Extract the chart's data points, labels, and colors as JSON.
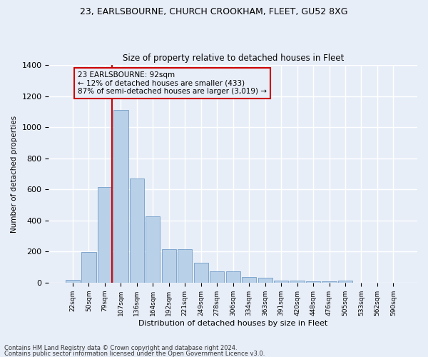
{
  "title1": "23, EARLSBOURNE, CHURCH CROOKHAM, FLEET, GU52 8XG",
  "title2": "Size of property relative to detached houses in Fleet",
  "xlabel": "Distribution of detached houses by size in Fleet",
  "ylabel": "Number of detached properties",
  "categories": [
    "22sqm",
    "50sqm",
    "79sqm",
    "107sqm",
    "136sqm",
    "164sqm",
    "192sqm",
    "221sqm",
    "249sqm",
    "278sqm",
    "306sqm",
    "334sqm",
    "363sqm",
    "391sqm",
    "420sqm",
    "448sqm",
    "476sqm",
    "505sqm",
    "533sqm",
    "562sqm",
    "590sqm"
  ],
  "values": [
    18,
    195,
    615,
    1110,
    670,
    425,
    215,
    215,
    130,
    72,
    72,
    35,
    30,
    15,
    15,
    10,
    10,
    12,
    0,
    0,
    0
  ],
  "bar_color": "#b8d0e8",
  "bar_edge_color": "#6090c0",
  "vline_color": "#cc0000",
  "annotation_text": "23 EARLSBOURNE: 92sqm\n← 12% of detached houses are smaller (433)\n87% of semi-detached houses are larger (3,019) →",
  "annotation_box_color": "#cc0000",
  "background_color": "#e8eef8",
  "grid_color": "#ffffff",
  "footer1": "Contains HM Land Registry data © Crown copyright and database right 2024.",
  "footer2": "Contains public sector information licensed under the Open Government Licence v3.0.",
  "ylim": [
    0,
    1400
  ],
  "yticks": [
    0,
    200,
    400,
    600,
    800,
    1000,
    1200,
    1400
  ]
}
